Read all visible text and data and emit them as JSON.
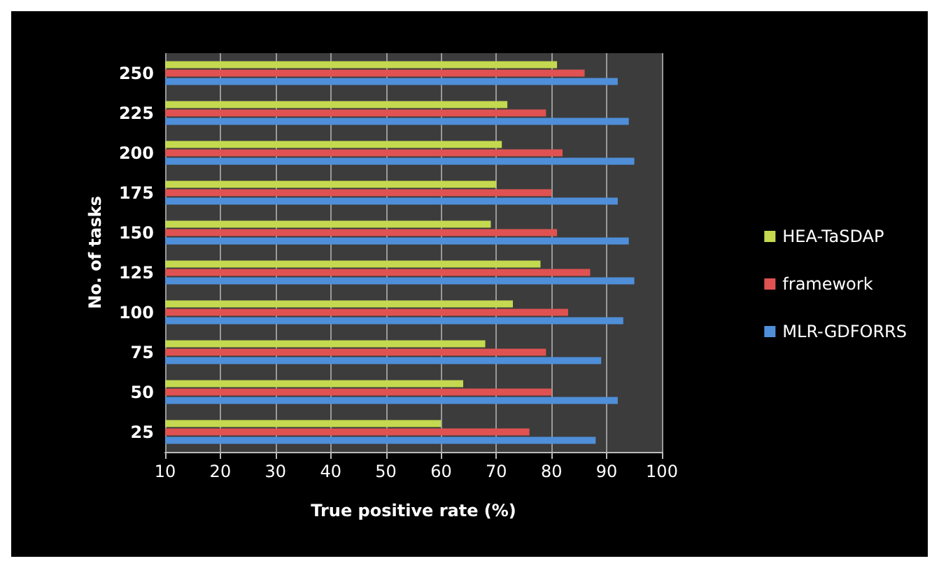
{
  "chart_data": {
    "type": "bar",
    "orientation": "horizontal",
    "xlabel": "True positive rate (%)",
    "ylabel": "No. of tasks",
    "categories": [
      "250",
      "225",
      "200",
      "175",
      "150",
      "125",
      "100",
      "75",
      "50",
      "25"
    ],
    "series": [
      {
        "name": "HEA-TaSDAP",
        "color": "#c4d94f",
        "values": [
          81,
          72,
          71,
          70,
          69,
          78,
          73,
          68,
          64,
          60
        ]
      },
      {
        "name": "framework",
        "color": "#e05252",
        "values": [
          86,
          79,
          82,
          80,
          81,
          87,
          83,
          79,
          80,
          76
        ]
      },
      {
        "name": "MLR-GDFORRS",
        "color": "#4f8fd9",
        "values": [
          92,
          94,
          95,
          92,
          94,
          95,
          93,
          89,
          92,
          88
        ]
      }
    ],
    "xlim": [
      10,
      100
    ],
    "xticks": [
      10,
      20,
      30,
      40,
      50,
      60,
      70,
      80,
      90,
      100
    ],
    "grid": "x",
    "legend": "right"
  }
}
